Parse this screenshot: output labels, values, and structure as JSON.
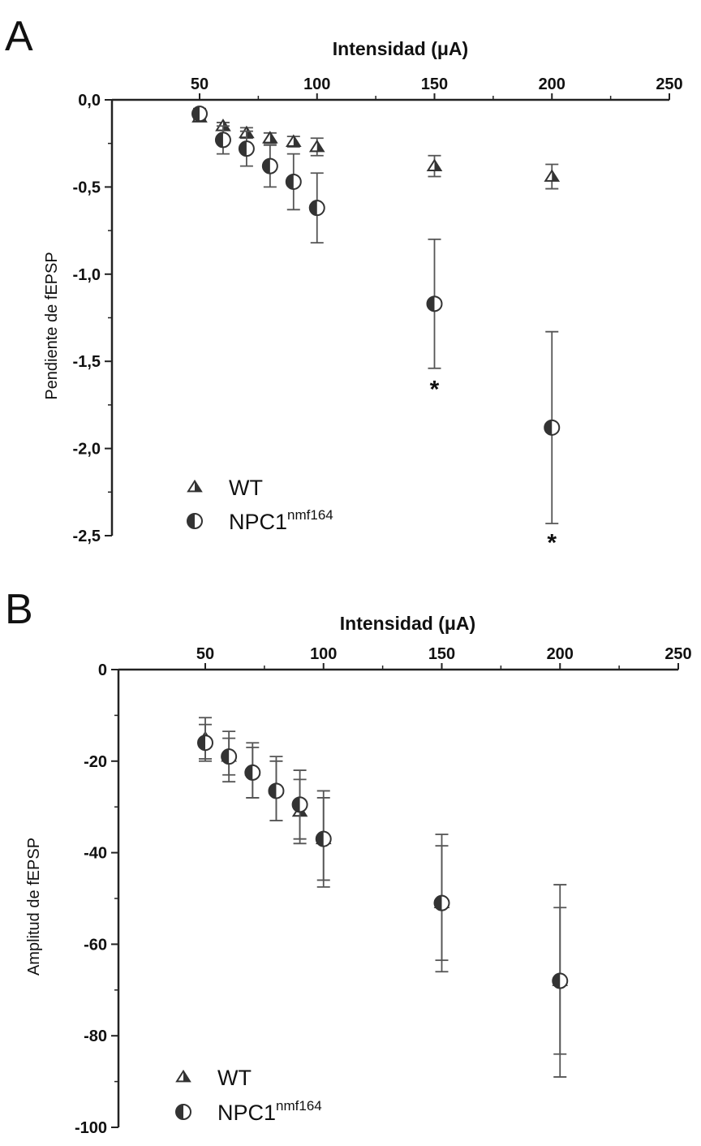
{
  "panels": {
    "A": {
      "letter": "A"
    },
    "B": {
      "letter": "B"
    }
  },
  "colors": {
    "axis": "#222222",
    "marker": "#333333",
    "errorbar": "#555555",
    "background": "#ffffff"
  },
  "chart_data": [
    {
      "id": "A",
      "type": "scatter",
      "xlabel": "Intensidad  (μA)",
      "ylabel": "Pendiente de fEPSP",
      "x_axis_position": "top",
      "xlim": [
        0,
        250
      ],
      "ylim": [
        -2.5,
        0
      ],
      "xticks": [
        50,
        100,
        150,
        200,
        250
      ],
      "xtick_labels": [
        "50",
        "100",
        "150",
        "200",
        "250"
      ],
      "yticks": [
        0,
        -0.5,
        -1.0,
        -1.5,
        -2.0,
        -2.5
      ],
      "ytick_labels": [
        "0,0",
        "-0,5",
        "-1,0",
        "-1,5",
        "-2,0",
        "-2,5"
      ],
      "grid": false,
      "legend_position": "bottom-left",
      "series": [
        {
          "name": "WT",
          "super": "",
          "marker": "half-filled-triangle",
          "x": [
            50,
            60,
            70,
            80,
            90,
            100,
            150,
            200
          ],
          "y": [
            -0.1,
            -0.15,
            -0.19,
            -0.22,
            -0.24,
            -0.27,
            -0.38,
            -0.44
          ],
          "err": [
            0.02,
            0.02,
            0.03,
            0.03,
            0.03,
            0.05,
            0.06,
            0.07
          ]
        },
        {
          "name": "NPC1",
          "super": "nmf164",
          "marker": "half-filled-circle",
          "x": [
            50,
            60,
            70,
            80,
            90,
            100,
            150,
            200
          ],
          "y": [
            -0.08,
            -0.23,
            -0.28,
            -0.38,
            -0.47,
            -0.62,
            -1.17,
            -1.88
          ],
          "err": [
            0.03,
            0.08,
            0.1,
            0.12,
            0.16,
            0.2,
            0.37,
            0.55
          ]
        }
      ],
      "annotations": [
        {
          "text": "*",
          "x": 150,
          "y": -1.65
        },
        {
          "text": "*",
          "x": 200,
          "y": -2.53
        }
      ]
    },
    {
      "id": "B",
      "type": "scatter",
      "xlabel": "Intensidad  (μA)",
      "ylabel": "Amplitud de fEPSP",
      "x_axis_position": "top",
      "xlim": [
        0,
        250
      ],
      "ylim": [
        -100,
        0
      ],
      "xticks": [
        50,
        100,
        150,
        200,
        250
      ],
      "xtick_labels": [
        "50",
        "100",
        "150",
        "200",
        "250"
      ],
      "yticks": [
        0,
        -20,
        -40,
        -60,
        -80,
        -100
      ],
      "ytick_labels": [
        "0",
        "-20",
        "-40",
        "-60",
        "-80",
        "-100"
      ],
      "grid": false,
      "legend_position": "bottom-left",
      "series": [
        {
          "name": "WT",
          "super": "",
          "marker": "half-filled-triangle",
          "x": [
            50,
            60,
            70,
            80,
            90,
            100,
            150,
            200
          ],
          "y": [
            -15,
            -19,
            -22,
            -26,
            -31,
            -37,
            -51,
            -68
          ],
          "err": [
            4.5,
            5.5,
            6,
            7,
            7,
            9,
            12.5,
            16
          ]
        },
        {
          "name": "NPC1",
          "super": "nmf164",
          "marker": "half-filled-circle",
          "x": [
            50,
            60,
            70,
            80,
            90,
            100,
            150,
            200
          ],
          "y": [
            -16,
            -19,
            -22.5,
            -26.5,
            -29.5,
            -37,
            -51,
            -68
          ],
          "err": [
            4,
            4,
            5.5,
            6.5,
            7.5,
            10.5,
            15,
            21
          ]
        }
      ],
      "annotations": []
    }
  ]
}
